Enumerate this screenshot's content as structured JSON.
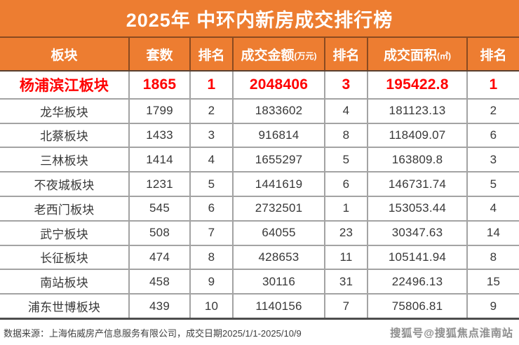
{
  "title": "2025年 中环内新房成交排行榜",
  "colors": {
    "header_orange": "#ED7D31",
    "header_border_dark": "#8A4A20",
    "highlight_red": "#FF0000",
    "grid_gray": "#A3A3A3",
    "bottom_rule_dark": "#4D4D4D"
  },
  "chart_data": {
    "type": "table",
    "title": "2025年 中环内新房成交排行榜",
    "columns": [
      {
        "label": "板块",
        "unit": ""
      },
      {
        "label": "套数",
        "unit": ""
      },
      {
        "label": "排名",
        "unit": ""
      },
      {
        "label": "成交金额",
        "unit": "(万元)"
      },
      {
        "label": "排名",
        "unit": ""
      },
      {
        "label": "成交面积",
        "unit": "(㎡)"
      },
      {
        "label": "排名",
        "unit": ""
      }
    ],
    "rows": [
      {
        "highlight": true,
        "cells": [
          "杨浦滨江板块",
          "1865",
          "1",
          "2048406",
          "3",
          "195422.8",
          "1"
        ]
      },
      {
        "highlight": false,
        "cells": [
          "龙华板块",
          "1799",
          "2",
          "1833602",
          "4",
          "181123.13",
          "2"
        ]
      },
      {
        "highlight": false,
        "cells": [
          "北蔡板块",
          "1433",
          "3",
          "916814",
          "8",
          "118409.07",
          "6"
        ]
      },
      {
        "highlight": false,
        "cells": [
          "三林板块",
          "1414",
          "4",
          "1655297",
          "5",
          "163809.8",
          "3"
        ]
      },
      {
        "highlight": false,
        "cells": [
          "不夜城板块",
          "1231",
          "5",
          "1441619",
          "6",
          "146731.74",
          "5"
        ]
      },
      {
        "highlight": false,
        "cells": [
          "老西门板块",
          "545",
          "6",
          "2732501",
          "1",
          "153053.44",
          "4"
        ]
      },
      {
        "highlight": false,
        "cells": [
          "武宁板块",
          "508",
          "7",
          "64055",
          "23",
          "30347.63",
          "14"
        ]
      },
      {
        "highlight": false,
        "cells": [
          "长征板块",
          "474",
          "8",
          "428653",
          "11",
          "105141.94",
          "8"
        ]
      },
      {
        "highlight": false,
        "cells": [
          "南站板块",
          "458",
          "9",
          "30116",
          "31",
          "22496.13",
          "15"
        ]
      },
      {
        "highlight": false,
        "cells": [
          "浦东世博板块",
          "439",
          "10",
          "1140156",
          "7",
          "75806.81",
          "9"
        ]
      }
    ]
  },
  "footer": {
    "source": "数据来源：上海佑威房产信息服务有限公司，成交日期2025/1/1-2025/10/9",
    "watermark": "搜狐号@搜狐焦点淮南站"
  }
}
